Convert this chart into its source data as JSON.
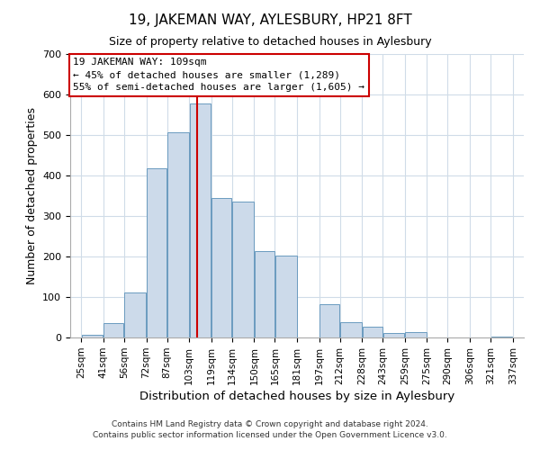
{
  "title": "19, JAKEMAN WAY, AYLESBURY, HP21 8FT",
  "subtitle": "Size of property relative to detached houses in Aylesbury",
  "xlabel": "Distribution of detached houses by size in Aylesbury",
  "ylabel": "Number of detached properties",
  "bar_color": "#ccdaea",
  "bar_edge_color": "#6a9bbf",
  "bar_left_edges": [
    25,
    41,
    56,
    72,
    87,
    103,
    119,
    134,
    150,
    165,
    181,
    197,
    212,
    228,
    243,
    259,
    275,
    290,
    306,
    321
  ],
  "bar_widths": [
    16,
    15,
    16,
    15,
    16,
    16,
    15,
    16,
    15,
    16,
    16,
    15,
    16,
    15,
    16,
    16,
    15,
    16,
    15,
    16
  ],
  "bar_heights": [
    7,
    35,
    112,
    417,
    507,
    578,
    345,
    335,
    213,
    202,
    0,
    82,
    37,
    27,
    12,
    13,
    0,
    0,
    0,
    2
  ],
  "tick_labels": [
    "25sqm",
    "41sqm",
    "56sqm",
    "72sqm",
    "87sqm",
    "103sqm",
    "119sqm",
    "134sqm",
    "150sqm",
    "165sqm",
    "181sqm",
    "197sqm",
    "212sqm",
    "228sqm",
    "243sqm",
    "259sqm",
    "275sqm",
    "290sqm",
    "306sqm",
    "321sqm",
    "337sqm"
  ],
  "tick_positions": [
    25,
    41,
    56,
    72,
    87,
    103,
    119,
    134,
    150,
    165,
    181,
    197,
    212,
    228,
    243,
    259,
    275,
    290,
    306,
    321,
    337
  ],
  "ylim": [
    0,
    700
  ],
  "xlim": [
    17,
    345
  ],
  "property_line_x": 109,
  "property_line_color": "#cc0000",
  "annotation_title": "19 JAKEMAN WAY: 109sqm",
  "annotation_line1": "← 45% of detached houses are smaller (1,289)",
  "annotation_line2": "55% of semi-detached houses are larger (1,605) →",
  "annotation_box_color": "#cc0000",
  "footnote1": "Contains HM Land Registry data © Crown copyright and database right 2024.",
  "footnote2": "Contains public sector information licensed under the Open Government Licence v3.0.",
  "background_color": "#ffffff",
  "plot_background": "#ffffff",
  "grid_color": "#d0dce8"
}
